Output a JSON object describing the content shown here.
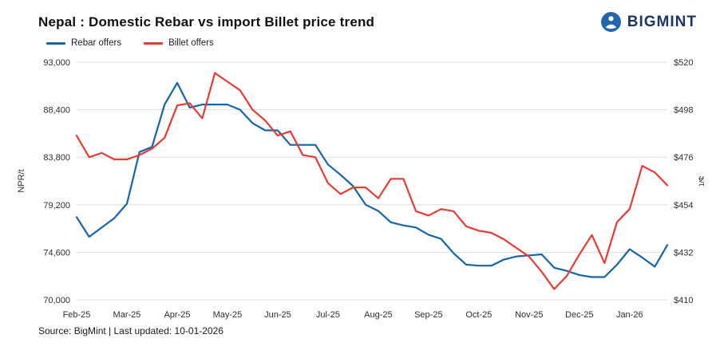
{
  "header": {
    "title": "Nepal : Domestic Rebar vs import Billet price trend",
    "logo_text": "BIGMINT"
  },
  "legend": [
    {
      "label": "Rebar offers",
      "color": "#1565ab"
    },
    {
      "label": "Billet offers",
      "color": "#e73b34"
    }
  ],
  "footer": {
    "source": "Source: BigMint | Last updated: 10-01-2026"
  },
  "chart_data": {
    "type": "line",
    "title": "Nepal : Domestic Rebar vs import Billet price trend",
    "grid": "horizontal",
    "legend_position": "top-left",
    "categories": [
      "Feb-25",
      "Mar-25",
      "Apr-25",
      "May-25",
      "Jun-25",
      "Jul-25",
      "Aug-25",
      "Sep-25",
      "Oct-25",
      "Nov-25",
      "Dec-25",
      "Jan-26"
    ],
    "points_per_month": 4,
    "left_axis": {
      "label": "NPR/t",
      "min": 70000,
      "max": 93000,
      "ticks": [
        70000,
        74600,
        79200,
        83800,
        88400,
        93000
      ]
    },
    "right_axis": {
      "label": "$/t",
      "min": 410,
      "max": 520,
      "ticks": [
        410,
        432,
        454,
        476,
        498,
        520
      ],
      "tick_prefix": "$"
    },
    "series": [
      {
        "name": "Rebar offers",
        "axis": "left",
        "unit": "NPR/t",
        "color": "#1565ab",
        "values": [
          78000,
          76100,
          77000,
          77900,
          79300,
          84300,
          84800,
          88900,
          91000,
          88600,
          88900,
          88900,
          88900,
          88400,
          87100,
          86400,
          86400,
          85000,
          85000,
          85000,
          83100,
          82100,
          81000,
          79200,
          78600,
          77500,
          77200,
          77000,
          76300,
          75900,
          74500,
          73400,
          73300,
          73300,
          73900,
          74200,
          74300,
          74400,
          73100,
          72800,
          72400,
          72200,
          72200,
          73400,
          74900,
          74100,
          73200,
          75300
        ]
      },
      {
        "name": "Billet offers",
        "axis": "right",
        "unit": "$/t",
        "color": "#e73b34",
        "values": [
          486,
          476,
          478,
          475,
          475,
          477,
          480,
          485,
          500,
          501,
          494,
          515,
          511,
          507,
          498,
          493,
          486,
          488,
          477,
          476,
          464,
          459,
          462,
          462,
          457,
          466,
          466,
          451,
          449,
          452,
          451,
          444,
          442,
          441,
          438,
          434,
          430,
          423,
          415,
          421,
          431,
          440,
          427,
          446,
          452,
          472,
          469,
          463
        ]
      }
    ]
  }
}
